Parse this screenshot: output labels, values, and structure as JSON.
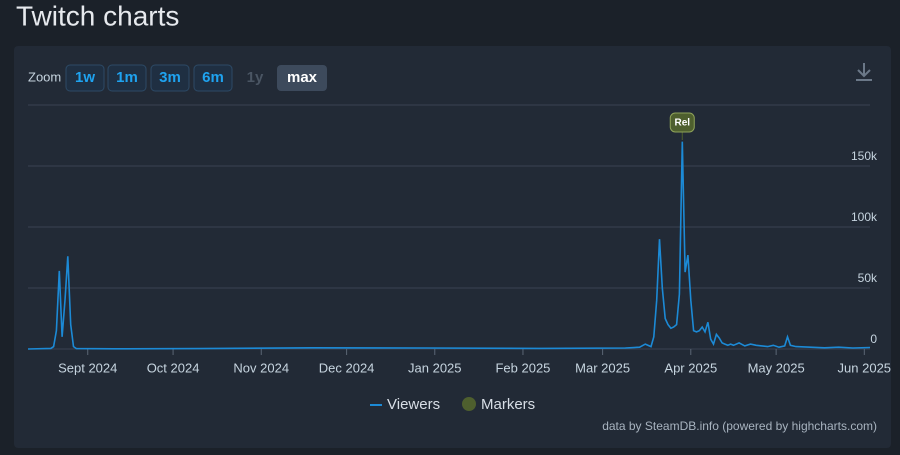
{
  "page_title": "Twitch charts",
  "zoom": {
    "label": "Zoom",
    "buttons": [
      "1w",
      "1m",
      "3m",
      "6m",
      "1y",
      "max"
    ]
  },
  "credit": "data by SteamDB.info (powered by highcharts.com)",
  "chart_data": {
    "type": "line",
    "x": [
      0,
      8,
      9,
      10,
      11,
      12,
      13,
      14,
      15,
      16,
      17,
      30,
      60,
      100,
      140,
      180,
      210,
      215,
      217,
      219,
      220,
      221,
      222,
      223,
      224,
      225,
      226,
      227,
      228,
      229,
      230,
      231,
      232,
      233,
      234,
      235,
      236,
      237,
      238,
      239,
      240,
      241,
      242,
      243,
      244,
      245,
      246,
      247,
      248,
      250,
      252,
      254,
      256,
      258,
      260,
      262,
      264,
      266,
      267,
      268,
      270,
      275,
      280,
      285,
      290,
      296
    ],
    "series": [
      {
        "name": "Viewers",
        "color": "#1c8ad6",
        "values": [
          0,
          500,
          2000,
          15000,
          64000,
          10000,
          40000,
          76000,
          20000,
          2000,
          300,
          200,
          300,
          1000,
          800,
          500,
          800,
          1500,
          4000,
          2000,
          10000,
          40000,
          90000,
          50000,
          25000,
          20000,
          17000,
          18000,
          20000,
          45000,
          170000,
          63000,
          77000,
          40000,
          15000,
          14000,
          15000,
          18000,
          14000,
          22000,
          8000,
          4000,
          12000,
          9000,
          5000,
          4000,
          3000,
          4000,
          3000,
          5000,
          2500,
          4000,
          3000,
          2500,
          2000,
          3000,
          1500,
          2500,
          10000,
          3000,
          2000,
          1500,
          1000,
          1500,
          800,
          1200
        ]
      }
    ],
    "markers": {
      "name": "Markers",
      "color": "#4e5f2e",
      "points": [
        {
          "x": 230,
          "label": "Rel"
        }
      ]
    },
    "xlim": [
      0,
      296
    ],
    "xticks": [
      {
        "value": 21,
        "label": "Sept 2024"
      },
      {
        "value": 51,
        "label": "Oct 2024"
      },
      {
        "value": 82,
        "label": "Nov 2024"
      },
      {
        "value": 112,
        "label": "Dec 2024"
      },
      {
        "value": 143,
        "label": "Jan 2025"
      },
      {
        "value": 174,
        "label": "Feb 2025"
      },
      {
        "value": 202,
        "label": "Mar 2025"
      },
      {
        "value": 233,
        "label": "Apr 2025"
      },
      {
        "value": 263,
        "label": "May 2025"
      },
      {
        "value": 294,
        "label": "Jun 2025"
      }
    ],
    "ylim": [
      0,
      200000
    ],
    "yticks": [
      0,
      {
        "value": 50000,
        "label": "50k"
      },
      {
        "value": 100000,
        "label": "100k"
      },
      {
        "value": 150000,
        "label": "150k"
      }
    ],
    "grid": true
  }
}
